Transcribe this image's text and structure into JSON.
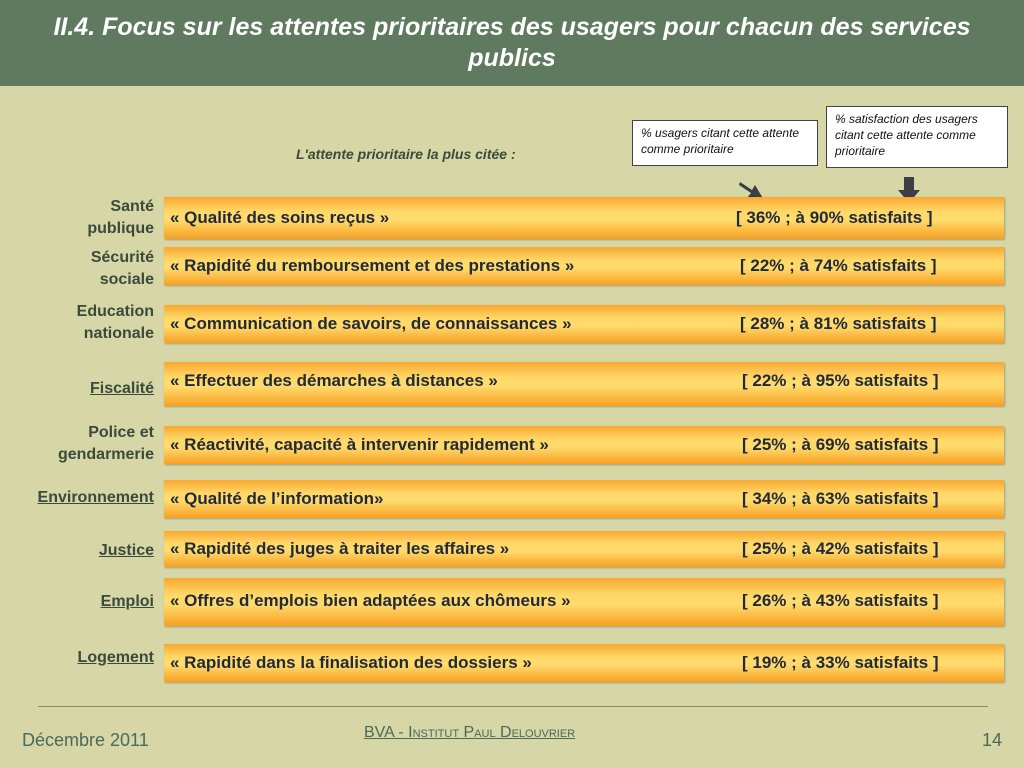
{
  "title": "II.4. Focus sur les attentes prioritaires des usagers pour chacun des services publics",
  "subheader": "L'attente prioritaire la plus citée :",
  "legend": {
    "pct_label": "% usagers citant cette attente comme prioritaire",
    "sat_label": "% satisfaction des usagers citant cette attente comme prioritaire"
  },
  "rows": [
    {
      "service": "Santé publique",
      "expectation": "« Qualité des soins reçus »",
      "stat": "[ 36% ; à 90% satisfaits ]",
      "pct_citing": 36,
      "pct_satisfied": 90
    },
    {
      "service": "Sécurité sociale",
      "expectation": "« Rapidité du remboursement et des prestations »",
      "stat": "[ 22% ; à 74% satisfaits ]",
      "pct_citing": 22,
      "pct_satisfied": 74
    },
    {
      "service": "Education nationale",
      "expectation": "« Communication de savoirs, de connaissances »",
      "stat": "[ 28% ; à 81% satisfaits ]",
      "pct_citing": 28,
      "pct_satisfied": 81
    },
    {
      "service": "Fiscalité",
      "expectation": "« Effectuer des démarches à distances »",
      "stat": "[ 22% ; à 95% satisfaits ]",
      "pct_citing": 22,
      "pct_satisfied": 95
    },
    {
      "service": "Police et gendarmerie",
      "expectation": "« Réactivité, capacité à intervenir rapidement »",
      "stat": "[ 25% ; à 69% satisfaits ]",
      "pct_citing": 25,
      "pct_satisfied": 69
    },
    {
      "service": "Environnement",
      "expectation": "« Qualité de l’information»",
      "stat": "[ 34% ; à 63% satisfaits ]",
      "pct_citing": 34,
      "pct_satisfied": 63
    },
    {
      "service": "Justice",
      "expectation": "« Rapidité des juges à traiter les affaires »",
      "stat": "[ 25% ; à 42% satisfaits ]",
      "pct_citing": 25,
      "pct_satisfied": 42
    },
    {
      "service": "Emploi",
      "expectation": "« Offres d’emplois bien adaptées aux chômeurs »",
      "stat": "[ 26% ; à 43% satisfaits ]",
      "pct_citing": 26,
      "pct_satisfied": 43
    },
    {
      "service": "Logement",
      "expectation": "« Rapidité dans la finalisation des dossiers »",
      "stat": "[ 19% ; à 33% satisfaits ]",
      "pct_citing": 19,
      "pct_satisfied": 33
    }
  ],
  "footer": {
    "date": "Décembre 2011",
    "org": "BVA - Institut Paul Delouvrier",
    "page": "14"
  },
  "colors": {
    "header_bg": "#5f7a5f",
    "page_bg": "#d6d6a6",
    "bar_orange": "#f8a022",
    "bar_yellow": "#ffd868",
    "label_text": "#3b4a3b"
  }
}
